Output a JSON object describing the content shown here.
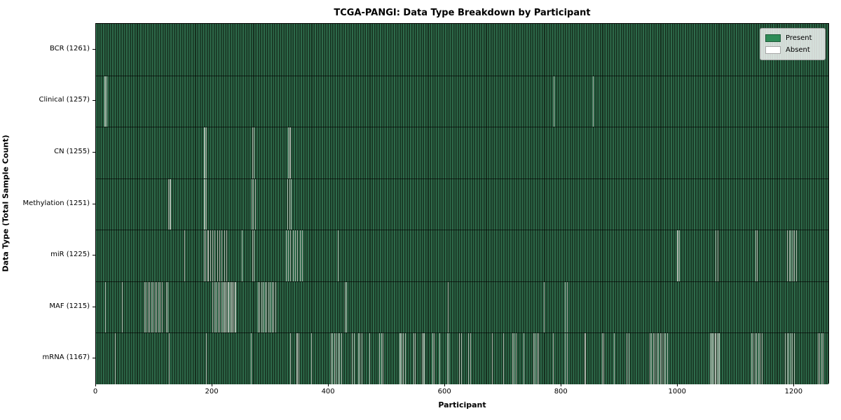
{
  "chart_data": {
    "type": "heatmap",
    "title": "TCGA-PANGI: Data Type Breakdown by Participant",
    "xlabel": "Participant",
    "ylabel": "Data Type (Total Sample Count)",
    "x_ticks": [
      0,
      200,
      400,
      600,
      800,
      1000,
      1200
    ],
    "x_range": [
      0,
      1261
    ],
    "total_participants": 1261,
    "grid": false,
    "legend": {
      "position": "upper right",
      "entries": [
        {
          "label": "Present",
          "color": "#2e8b57"
        },
        {
          "label": "Absent",
          "color": "#ffffff"
        }
      ]
    },
    "colors": {
      "present_fill": "#2e8b57",
      "absent_fill": "#ffffff",
      "bar_edge": "#000000",
      "absent_line_render": "#adb8ad"
    },
    "rows": [
      {
        "data_type": "BCR",
        "label": "BCR (1261)",
        "present_count": 1261,
        "absent_count": 0,
        "absent_positions": []
      },
      {
        "data_type": "Clinical",
        "label": "Clinical (1257)",
        "present_count": 1257,
        "absent_count": 4,
        "absent_positions": [
          15,
          18,
          786,
          854
        ]
      },
      {
        "data_type": "CN",
        "label": "CN (1255)",
        "present_count": 1255,
        "absent_count": 6,
        "absent_positions": [
          186,
          189,
          268,
          271,
          330,
          333
        ]
      },
      {
        "data_type": "Methylation",
        "label": "Methylation (1251)",
        "present_count": 1251,
        "absent_count": 10,
        "absent_positions": [
          124,
          127,
          186,
          189,
          267,
          270,
          273,
          329,
          332,
          335
        ]
      },
      {
        "data_type": "miR",
        "label": "miR (1225)",
        "present_count": 1225,
        "absent_count": 36,
        "absent_positions": [
          152,
          185,
          188,
          192,
          196,
          200,
          204,
          208,
          212,
          216,
          220,
          224,
          250,
          268,
          271,
          326,
          330,
          334,
          338,
          342,
          346,
          350,
          354,
          415,
          999,
          1002,
          1065,
          1068,
          1133,
          1136,
          1188,
          1191,
          1194,
          1197,
          1200,
          1203
        ]
      },
      {
        "data_type": "MAF",
        "label": "MAF (1215)",
        "present_count": 1215,
        "absent_count": 46,
        "absent_positions": [
          16,
          45,
          83,
          86,
          89,
          92,
          95,
          98,
          101,
          104,
          107,
          110,
          113,
          120,
          123,
          200,
          203,
          206,
          209,
          212,
          215,
          218,
          221,
          224,
          227,
          230,
          233,
          236,
          239,
          278,
          281,
          284,
          287,
          290,
          293,
          296,
          299,
          302,
          305,
          308,
          427,
          430,
          605,
          770,
          806,
          809
        ]
      },
      {
        "data_type": "mRNA",
        "label": "mRNA (1167)",
        "present_count": 1167,
        "absent_count": 94,
        "absent_positions": [
          32,
          125,
          189,
          266,
          334,
          345,
          348,
          370,
          403,
          406,
          409,
          412,
          415,
          418,
          421,
          440,
          443,
          450,
          453,
          456,
          470,
          487,
          490,
          493,
          522,
          525,
          528,
          531,
          545,
          548,
          560,
          563,
          578,
          581,
          590,
          603,
          606,
          624,
          627,
          640,
          643,
          680,
          700,
          715,
          718,
          721,
          735,
          751,
          754,
          757,
          760,
          785,
          806,
          809,
          840,
          869,
          872,
          890,
          912,
          915,
          951,
          954,
          957,
          960,
          963,
          966,
          969,
          972,
          975,
          978,
          981,
          1055,
          1058,
          1061,
          1064,
          1067,
          1070,
          1126,
          1129,
          1132,
          1135,
          1138,
          1141,
          1144,
          1184,
          1187,
          1190,
          1193,
          1196,
          1199,
          1240,
          1243,
          1246,
          1249
        ]
      }
    ]
  }
}
